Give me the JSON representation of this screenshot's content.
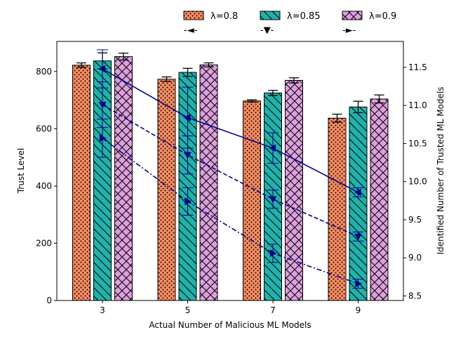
{
  "chart_data": {
    "type": "bar",
    "title": "",
    "xlabel": "Actual Number of Malicious ML Models",
    "ylabel": "Trust Level",
    "y2label": "Identified Number of Trusted ML Models",
    "categories": [
      "3",
      "5",
      "7",
      "9"
    ],
    "ylim": [
      0,
      905
    ],
    "y2lim": [
      8.44,
      11.84
    ],
    "yticks": [
      "0",
      "200",
      "400",
      "600",
      "800"
    ],
    "y2ticks": [
      "8.5",
      "9.0",
      "9.5",
      "10.0",
      "10.5",
      "11.0",
      "11.5"
    ],
    "grid": false,
    "legend_position": "top-center",
    "bar_series": [
      {
        "name": "λ=0.8",
        "color": "#fc8d62",
        "hatch": "dots",
        "values": [
          822,
          773,
          697,
          637
        ],
        "errors": [
          8,
          8,
          4,
          14
        ]
      },
      {
        "name": "λ=0.85",
        "color": "#20b2aa",
        "hatch": "backslash",
        "values": [
          837,
          797,
          725,
          676
        ],
        "errors": [
          28,
          14,
          9,
          20
        ]
      },
      {
        "name": "λ=0.9",
        "color": "#dda0dd",
        "hatch": "crosshatch",
        "values": [
          852,
          823,
          769,
          704
        ],
        "errors": [
          12,
          7,
          9,
          14
        ]
      }
    ],
    "line_series": [
      {
        "name": "-◄-",
        "color": "#00008b",
        "dash": "solid",
        "marker": "triangle-left",
        "values": [
          11.48,
          10.84,
          10.44,
          9.86
        ],
        "errors": [
          0.25,
          0.4,
          0.2,
          0.06
        ]
      },
      {
        "name": "-▼-",
        "color": "#00008b",
        "dash": "dashed",
        "marker": "triangle-down",
        "values": [
          11.01,
          10.35,
          9.77,
          9.28
        ],
        "errors": [
          0.3,
          0.25,
          0.12,
          0.06
        ]
      },
      {
        "name": "-►-",
        "color": "#00008b",
        "dash": "dashdot",
        "marker": "triangle-right",
        "values": [
          10.57,
          9.74,
          9.06,
          8.66
        ],
        "errors": [
          0.25,
          0.18,
          0.12,
          0.06
        ]
      }
    ]
  }
}
